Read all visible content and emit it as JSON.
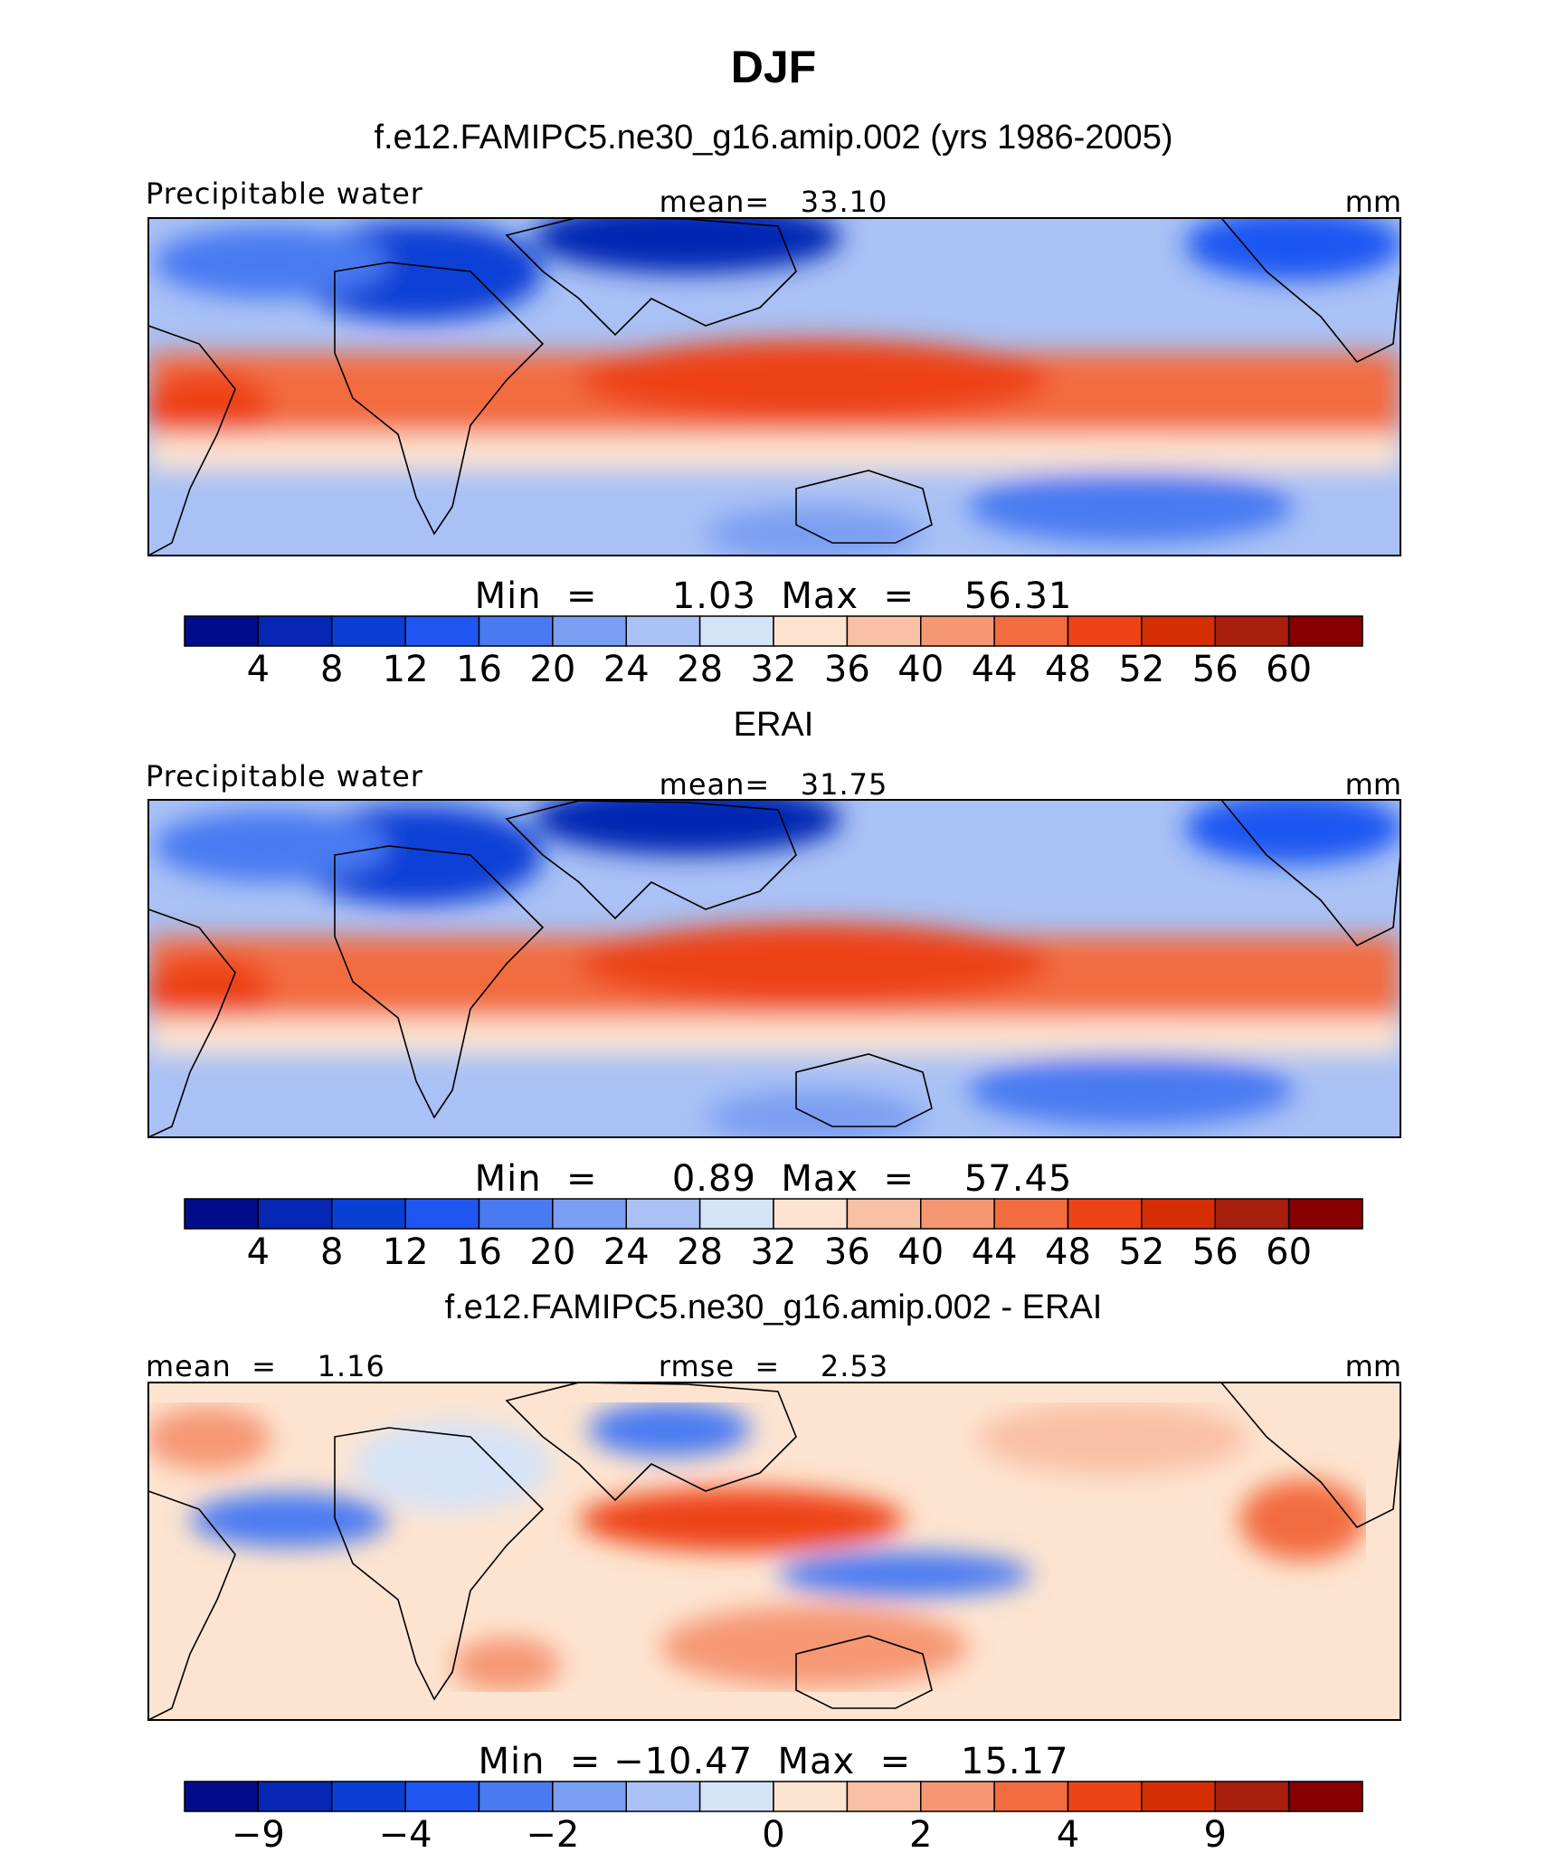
{
  "figure": {
    "title": "DJF",
    "colors": {
      "full_field": [
        "#000d8a",
        "#0527b3",
        "#0a3fd6",
        "#1f56f2",
        "#4a7af2",
        "#7a9ef2",
        "#a9c1f5",
        "#d4e3f8",
        "#fde4d0",
        "#f9c0a4",
        "#f69774",
        "#f36c3f",
        "#ee4316",
        "#d62e05",
        "#a81e0f",
        "#860000"
      ],
      "difference": [
        "#000d8a",
        "#0527b3",
        "#0a3fd6",
        "#1f56f2",
        "#4a7af2",
        "#7a9ef2",
        "#a9c1f5",
        "#d4e3f8",
        "#fde4d0",
        "#f9c0a4",
        "#f69774",
        "#f36c3f",
        "#ee4316",
        "#d62e05",
        "#a81e0f",
        "#860000"
      ]
    }
  },
  "chart_data": [
    {
      "type": "heatmap",
      "title": "f.e12.FAMIPC5.ne30_g16.amip.002 (yrs 1986-2005)",
      "left_label": "Precipitable water",
      "center_label": "mean=   33.10",
      "units": "mm",
      "stats_label": "Min  =      1.03  Max  =    56.31",
      "min": 1.03,
      "max": 56.31,
      "mean": 33.1,
      "colorbar_ticks": [
        "4",
        "8",
        "12",
        "16",
        "20",
        "24",
        "28",
        "32",
        "36",
        "40",
        "44",
        "48",
        "52",
        "56",
        "60"
      ]
    },
    {
      "type": "heatmap",
      "title": "ERAI",
      "left_label": "Precipitable water",
      "center_label": "mean=   31.75",
      "units": "mm",
      "stats_label": "Min  =      0.89  Max  =    57.45",
      "min": 0.89,
      "max": 57.45,
      "mean": 31.75,
      "colorbar_ticks": [
        "4",
        "8",
        "12",
        "16",
        "20",
        "24",
        "28",
        "32",
        "36",
        "40",
        "44",
        "48",
        "52",
        "56",
        "60"
      ]
    },
    {
      "type": "heatmap",
      "title": "f.e12.FAMIPC5.ne30_g16.amip.002 - ERAI",
      "left_label": "mean  =    1.16",
      "center_label": "rmse  =    2.53",
      "units": "mm",
      "stats_label": "Min  = −10.47  Max  =    15.17",
      "min": -10.47,
      "max": 15.17,
      "mean": 1.16,
      "rmse": 2.53,
      "colorbar_ticks": [
        "−9",
        "−4",
        "−2",
        "0",
        "2",
        "4",
        "9"
      ]
    }
  ]
}
